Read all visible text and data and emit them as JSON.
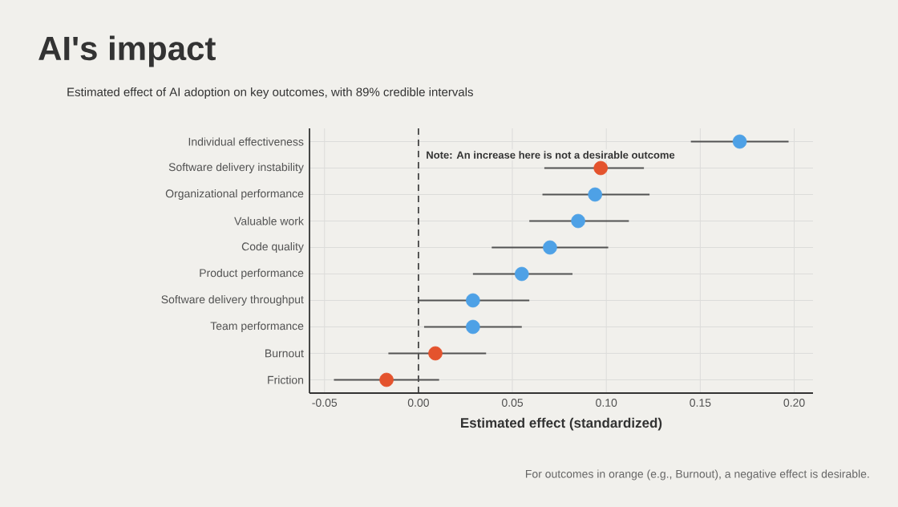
{
  "chart_data": {
    "type": "scatter",
    "orientation": "horizontal",
    "title": "AI's impact",
    "subtitle": "Estimated effect of AI adoption on key outcomes, with 89% credible intervals",
    "xlabel": "Estimated effect (standardized)",
    "categories": [
      "Individual effectiveness",
      "Software delivery instability",
      "Organizational performance",
      "Valuable work",
      "Code quality",
      "Product performance",
      "Software delivery throughput",
      "Team performance",
      "Burnout",
      "Friction"
    ],
    "values": [
      0.171,
      0.097,
      0.094,
      0.085,
      0.07,
      0.055,
      0.029,
      0.029,
      0.009,
      -0.017
    ],
    "errors": [
      [
        0.145,
        0.197
      ],
      [
        0.067,
        0.12
      ],
      [
        0.066,
        0.123
      ],
      [
        0.059,
        0.112
      ],
      [
        0.039,
        0.101
      ],
      [
        0.029,
        0.082
      ],
      [
        0.0,
        0.059
      ],
      [
        0.003,
        0.055
      ],
      [
        -0.016,
        0.036
      ],
      [
        -0.045,
        0.011
      ]
    ],
    "colors": [
      "#4ea1e6",
      "#e4532d",
      "#4ea1e6",
      "#4ea1e6",
      "#4ea1e6",
      "#4ea1e6",
      "#4ea1e6",
      "#4ea1e6",
      "#e4532d",
      "#e4532d"
    ],
    "xlim": [
      -0.058,
      0.21
    ],
    "xticks": [
      {
        "value": -0.05,
        "label": "-0.05"
      },
      {
        "value": 0,
        "label": "0.00"
      },
      {
        "value": 0.05,
        "label": "0.05"
      },
      {
        "value": 0.1,
        "label": "0.10"
      },
      {
        "value": 0.15,
        "label": "0.15"
      },
      {
        "value": 0.2,
        "label": "0.20"
      }
    ],
    "ref_lines": [
      {
        "axis": "x",
        "value": 0,
        "line_style": "dashed"
      }
    ],
    "grid": true,
    "marker": "circle",
    "annotations": [
      "Note: An increase here is not a desirable outcome",
      "For outcomes in orange (e.g., Burnout), a negative effect is desirable."
    ]
  }
}
